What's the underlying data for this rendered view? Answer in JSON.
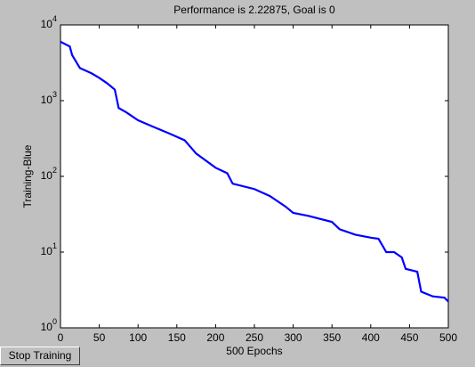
{
  "chart_data": {
    "type": "line",
    "title": "Performance is 2.22875, Goal is 0",
    "xlabel": "500 Epochs",
    "ylabel": "Training-Blue",
    "log_y": true,
    "xlim": [
      0,
      500
    ],
    "xticks": [
      0,
      50,
      100,
      150,
      200,
      250,
      300,
      350,
      400,
      450,
      500
    ],
    "ylim": [
      1,
      10000
    ],
    "yticks": [
      {
        "value": 1,
        "label": "10^0"
      },
      {
        "value": 10,
        "label": "10^1"
      },
      {
        "value": 100,
        "label": "10^2"
      },
      {
        "value": 1000,
        "label": "10^3"
      },
      {
        "value": 10000,
        "label": "10^4"
      }
    ],
    "x": [
      0,
      12,
      15,
      25,
      40,
      50,
      60,
      70,
      75,
      85,
      100,
      120,
      140,
      160,
      175,
      200,
      215,
      222,
      250,
      270,
      290,
      300,
      320,
      350,
      360,
      380,
      400,
      410,
      420,
      430,
      440,
      445,
      460,
      465,
      480,
      495,
      500
    ],
    "series": [
      {
        "name": "Training",
        "color": "#0000ff",
        "values": [
          6000,
          5200,
          4000,
          2700,
          2300,
          2000,
          1700,
          1400,
          800,
          700,
          550,
          450,
          370,
          300,
          200,
          130,
          110,
          80,
          68,
          55,
          40,
          33,
          30,
          25,
          20,
          17,
          15.5,
          15,
          10,
          10,
          8.5,
          6,
          5.5,
          3,
          2.6,
          2.5,
          2.22875
        ]
      }
    ]
  },
  "button": {
    "label": "Stop Training"
  }
}
